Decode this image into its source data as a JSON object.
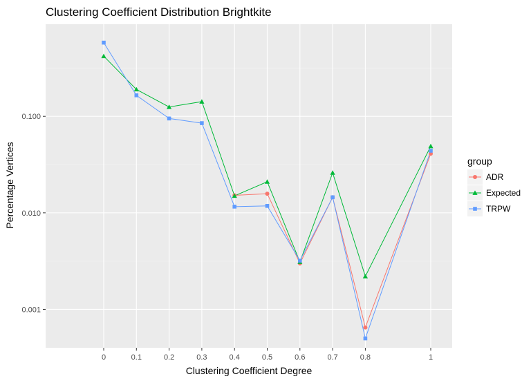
{
  "chart_data": {
    "type": "line",
    "title": "Clustering Coefficient Distribution Brightkite",
    "xlabel": "Clustering Coefficient Degree",
    "ylabel": "Percentage Vertices",
    "x": [
      0,
      0.1,
      0.2,
      0.3,
      0.4,
      0.5,
      0.6,
      0.7,
      0.8,
      1
    ],
    "x_tick_labels": [
      "0",
      "0.1",
      "0.2",
      "0.3",
      "0.4",
      "0.5",
      "0.6",
      "0.7",
      "0.8",
      "1"
    ],
    "y_scale": "log10",
    "ylim": [
      0.0004,
      0.9
    ],
    "y_ticks": [
      0.001,
      0.01,
      0.1
    ],
    "y_tick_labels": [
      "0.001",
      "0.010",
      "0.100"
    ],
    "grid": true,
    "legend": {
      "title": "group",
      "placement": "right"
    },
    "series": [
      {
        "name": "ADR",
        "color": "#F8766D",
        "marker": "circle",
        "values": [
          null,
          null,
          null,
          null,
          0.0152,
          0.0158,
          0.003,
          0.0145,
          0.00065,
          0.041
        ]
      },
      {
        "name": "Expected",
        "color": "#00BA38",
        "marker": "triangle",
        "values": [
          0.42,
          0.19,
          0.125,
          0.142,
          0.015,
          0.021,
          0.0031,
          0.026,
          0.0022,
          0.049
        ]
      },
      {
        "name": "TRPW",
        "color": "#619CFF",
        "marker": "square",
        "values": [
          0.58,
          0.165,
          0.095,
          0.085,
          0.0116,
          0.0118,
          0.0032,
          0.0145,
          0.0005,
          0.044
        ]
      }
    ]
  }
}
